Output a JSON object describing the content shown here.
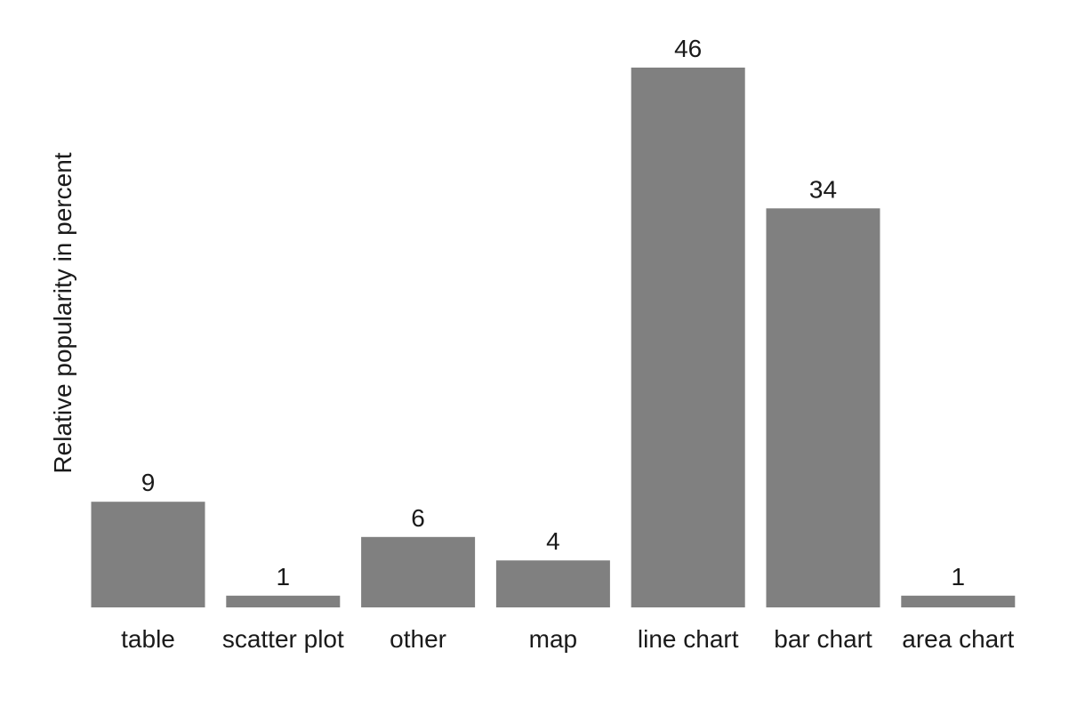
{
  "chart_data": {
    "type": "bar",
    "categories": [
      "table",
      "scatter plot",
      "other",
      "map",
      "line chart",
      "bar chart",
      "area chart"
    ],
    "values": [
      9,
      1,
      6,
      4,
      46,
      34,
      1
    ],
    "ylabel": "Relative popularity  in percent",
    "ylim": [
      0,
      46
    ],
    "grid": false,
    "bar_color": "#808080"
  }
}
